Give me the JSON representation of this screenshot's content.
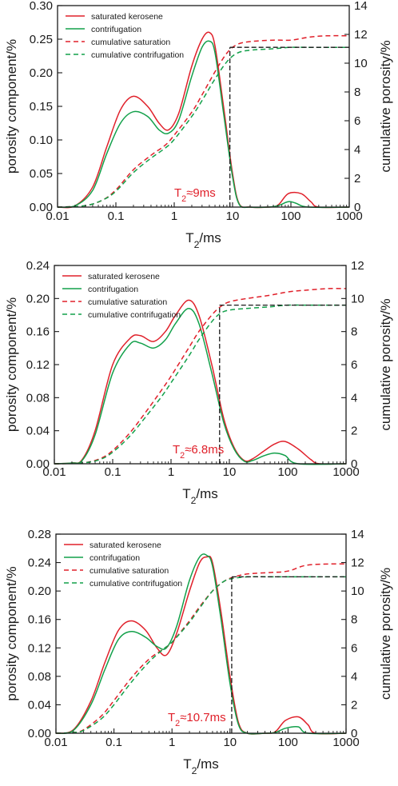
{
  "colors": {
    "saturated": "#e0202a",
    "centrifuged": "#12a04a",
    "threshold": "#1a1a1a",
    "axis": "#1a1a1a"
  },
  "chart_data": [
    {
      "type": "line",
      "xscale": "log",
      "xlim": [
        0.01,
        1000
      ],
      "xlabel": "T2/ms",
      "ylabel": "porosity component/%",
      "y2label": "cumulative porosity/%",
      "ylim": [
        0,
        0.3
      ],
      "y2lim": [
        0,
        14
      ],
      "xticks": [
        "0.01",
        "0.1",
        "1",
        "10",
        "100",
        "1000"
      ],
      "yticks": [
        "0.00",
        "0.05",
        "0.10",
        "0.15",
        "0.20",
        "0.25",
        "0.30"
      ],
      "y2ticks": [
        "0",
        "2",
        "4",
        "6",
        "8",
        "10",
        "12",
        "14"
      ],
      "legend": [
        "saturated kerosene",
        "contrifugation",
        "cumulative saturation",
        "cumulative contrifugation"
      ],
      "legend_position": "top-left",
      "annotation": "T2≈9ms",
      "cutoff_T2": 9,
      "cutoff_cumulative": 11.1,
      "series": [
        {
          "name": "saturated kerosene",
          "axis": "left",
          "style": "solid",
          "color": "saturated",
          "x": [
            0.01,
            0.02,
            0.04,
            0.07,
            0.12,
            0.2,
            0.35,
            0.55,
            0.8,
            1.2,
            2,
            3,
            4,
            5,
            7,
            10,
            13,
            20,
            40,
            60,
            90,
            150,
            220,
            300,
            1000
          ],
          "y": [
            0,
            0.002,
            0.03,
            0.09,
            0.145,
            0.165,
            0.15,
            0.125,
            0.115,
            0.14,
            0.21,
            0.25,
            0.26,
            0.24,
            0.15,
            0.05,
            0.005,
            0,
            0,
            0.003,
            0.02,
            0.02,
            0.008,
            0,
            0
          ]
        },
        {
          "name": "contrifugation",
          "axis": "left",
          "style": "solid",
          "color": "centrifuged",
          "x": [
            0.01,
            0.02,
            0.04,
            0.07,
            0.12,
            0.2,
            0.35,
            0.55,
            0.8,
            1.2,
            2,
            3,
            4,
            5,
            7,
            10,
            13,
            20,
            40,
            60,
            90,
            120,
            200,
            1000
          ],
          "y": [
            0,
            0.002,
            0.025,
            0.08,
            0.125,
            0.142,
            0.135,
            0.115,
            0.11,
            0.13,
            0.195,
            0.238,
            0.247,
            0.23,
            0.14,
            0.045,
            0.004,
            0,
            0,
            0.002,
            0.008,
            0.006,
            0,
            0
          ]
        },
        {
          "name": "cumulative saturation",
          "axis": "right",
          "style": "dashed",
          "color": "saturated",
          "x": [
            0.01,
            0.03,
            0.06,
            0.1,
            0.2,
            0.4,
            0.7,
            1,
            2,
            3,
            5,
            8,
            12,
            20,
            50,
            100,
            200,
            400,
            1000
          ],
          "y": [
            0,
            0.1,
            0.5,
            1.2,
            2.6,
            3.6,
            4.3,
            5.0,
            6.6,
            7.8,
            9.4,
            10.7,
            11.3,
            11.5,
            11.6,
            11.6,
            11.8,
            11.9,
            11.9
          ]
        },
        {
          "name": "cumulative contrifugation",
          "axis": "right",
          "style": "dashed",
          "color": "centrifuged",
          "x": [
            0.01,
            0.03,
            0.06,
            0.1,
            0.2,
            0.4,
            0.7,
            1,
            2,
            3,
            5,
            8,
            12,
            20,
            50,
            100,
            200,
            400,
            1000
          ],
          "y": [
            0,
            0.1,
            0.5,
            1.1,
            2.4,
            3.4,
            4.1,
            4.7,
            6.3,
            7.4,
            8.9,
            10.1,
            10.7,
            10.9,
            11.0,
            11.1,
            11.1,
            11.1,
            11.1
          ]
        }
      ]
    },
    {
      "type": "line",
      "xscale": "log",
      "xlim": [
        0.01,
        1000
      ],
      "xlabel": "T2/ms",
      "ylabel": "porosity component/%",
      "y2label": "cumulative porosity/%",
      "ylim": [
        0,
        0.24
      ],
      "y2lim": [
        0,
        12
      ],
      "xticks": [
        "0.01",
        "0.1",
        "1",
        "10",
        "100",
        "1000"
      ],
      "yticks": [
        "0.00",
        "0.04",
        "0.08",
        "0.12",
        "0.16",
        "0.20",
        "0.24"
      ],
      "y2ticks": [
        "0",
        "2",
        "4",
        "6",
        "8",
        "10",
        "12"
      ],
      "legend": [
        "saturated kerosene",
        "contrifugation",
        "cumulative saturation",
        "cumulative contrifugation"
      ],
      "legend_position": "top-left",
      "annotation": "T2≈6.8ms",
      "cutoff_T2": 6.8,
      "cutoff_cumulative": 9.6,
      "series": [
        {
          "name": "saturated kerosene",
          "axis": "left",
          "style": "solid",
          "color": "saturated",
          "x": [
            0.01,
            0.02,
            0.03,
            0.05,
            0.1,
            0.2,
            0.3,
            0.5,
            0.8,
            1.2,
            2,
            3,
            5,
            8,
            12,
            18,
            25,
            40,
            60,
            90,
            150,
            250,
            350,
            1000
          ],
          "y": [
            0,
            0.001,
            0.005,
            0.04,
            0.12,
            0.152,
            0.155,
            0.148,
            0.16,
            0.18,
            0.198,
            0.18,
            0.12,
            0.055,
            0.02,
            0.004,
            0.006,
            0.016,
            0.024,
            0.027,
            0.018,
            0.005,
            0,
            0
          ]
        },
        {
          "name": "contrifugation",
          "axis": "left",
          "style": "solid",
          "color": "centrifuged",
          "x": [
            0.01,
            0.02,
            0.03,
            0.05,
            0.1,
            0.2,
            0.3,
            0.5,
            0.8,
            1.2,
            2,
            3,
            5,
            8,
            12,
            18,
            25,
            40,
            60,
            90,
            150,
            1000
          ],
          "y": [
            0,
            0.001,
            0.004,
            0.035,
            0.11,
            0.145,
            0.146,
            0.14,
            0.15,
            0.17,
            0.188,
            0.17,
            0.11,
            0.05,
            0.018,
            0.003,
            0.004,
            0.01,
            0.013,
            0.01,
            0,
            0
          ]
        },
        {
          "name": "cumulative saturation",
          "axis": "right",
          "style": "dashed",
          "color": "saturated",
          "x": [
            0.01,
            0.03,
            0.06,
            0.1,
            0.2,
            0.4,
            0.7,
            1,
            2,
            3,
            5,
            7,
            10,
            20,
            50,
            100,
            200,
            500,
            1000
          ],
          "y": [
            0,
            0.05,
            0.3,
            0.8,
            1.9,
            3.3,
            4.5,
            5.3,
            7.0,
            8.0,
            9.0,
            9.5,
            9.8,
            10.0,
            10.2,
            10.4,
            10.5,
            10.6,
            10.6
          ]
        },
        {
          "name": "cumulative contrifugation",
          "axis": "right",
          "style": "dashed",
          "color": "centrifuged",
          "x": [
            0.01,
            0.03,
            0.06,
            0.1,
            0.2,
            0.4,
            0.7,
            1,
            2,
            3,
            5,
            7,
            10,
            20,
            50,
            100,
            200,
            500,
            1000
          ],
          "y": [
            0,
            0.05,
            0.25,
            0.7,
            1.7,
            3.0,
            4.1,
            4.9,
            6.5,
            7.5,
            8.6,
            9.1,
            9.3,
            9.4,
            9.5,
            9.6,
            9.6,
            9.6,
            9.6
          ]
        }
      ]
    },
    {
      "type": "line",
      "xscale": "log",
      "xlim": [
        0.01,
        1000
      ],
      "xlabel": "T2/ms",
      "ylabel": "porosity component/%",
      "y2label": "cumulative porosity/%",
      "ylim": [
        0,
        0.28
      ],
      "y2lim": [
        0,
        14
      ],
      "xticks": [
        "0.01",
        "0.1",
        "1",
        "10",
        "100",
        "1000"
      ],
      "yticks": [
        "0.00",
        "0.04",
        "0.08",
        "0.12",
        "0.16",
        "0.20",
        "0.24",
        "0.28"
      ],
      "y2ticks": [
        "0",
        "2",
        "4",
        "6",
        "8",
        "10",
        "12",
        "14"
      ],
      "legend": [
        "saturated kerosene",
        "contrifugation",
        "cumulative saturation",
        "cumulative contrifugation"
      ],
      "legend_position": "top-left",
      "annotation": "T2≈10.7ms",
      "cutoff_T2": 10.7,
      "cutoff_cumulative": 11.0,
      "series": [
        {
          "name": "saturated kerosene",
          "axis": "left",
          "style": "solid",
          "color": "saturated",
          "x": [
            0.01,
            0.02,
            0.04,
            0.07,
            0.12,
            0.2,
            0.35,
            0.55,
            0.8,
            1.2,
            2,
            3,
            4,
            5,
            7,
            10,
            14,
            20,
            40,
            60,
            90,
            150,
            220,
            300,
            1000
          ],
          "y": [
            0,
            0.005,
            0.045,
            0.1,
            0.145,
            0.158,
            0.145,
            0.12,
            0.11,
            0.14,
            0.2,
            0.24,
            0.248,
            0.24,
            0.17,
            0.08,
            0.015,
            0,
            0,
            0.002,
            0.018,
            0.023,
            0.012,
            0,
            0
          ]
        },
        {
          "name": "contrifugation",
          "axis": "left",
          "style": "solid",
          "color": "centrifuged",
          "x": [
            0.01,
            0.02,
            0.04,
            0.07,
            0.12,
            0.2,
            0.35,
            0.55,
            0.8,
            1.2,
            2,
            3,
            4,
            5,
            7,
            10,
            14,
            20,
            40,
            60,
            90,
            150,
            220,
            1000
          ],
          "y": [
            0,
            0.004,
            0.04,
            0.09,
            0.132,
            0.143,
            0.135,
            0.122,
            0.12,
            0.15,
            0.215,
            0.248,
            0.25,
            0.235,
            0.16,
            0.07,
            0.012,
            0,
            0,
            0.001,
            0.007,
            0.009,
            0,
            0
          ]
        },
        {
          "name": "cumulative saturation",
          "axis": "right",
          "style": "dashed",
          "color": "saturated",
          "x": [
            0.01,
            0.02,
            0.03,
            0.06,
            0.1,
            0.2,
            0.4,
            0.7,
            1,
            2,
            3,
            5,
            8,
            12,
            20,
            50,
            100,
            200,
            500,
            1000
          ],
          "y": [
            0,
            0.05,
            0.25,
            1.2,
            2.3,
            3.9,
            5.2,
            5.9,
            6.4,
            7.9,
            8.9,
            10.0,
            10.7,
            11.0,
            11.2,
            11.3,
            11.4,
            11.8,
            11.9,
            11.9
          ]
        },
        {
          "name": "cumulative contrifugation",
          "axis": "right",
          "style": "dashed",
          "color": "centrifuged",
          "x": [
            0.01,
            0.02,
            0.03,
            0.06,
            0.1,
            0.2,
            0.4,
            0.7,
            1,
            2,
            3,
            5,
            8,
            12,
            20,
            50,
            100,
            200,
            500,
            1000
          ],
          "y": [
            0,
            0.05,
            0.2,
            1.0,
            2.0,
            3.6,
            5.0,
            5.9,
            6.4,
            7.8,
            8.8,
            10.0,
            10.7,
            10.9,
            11.0,
            11.0,
            11.0,
            11.0,
            11.0,
            11.0
          ]
        }
      ]
    }
  ]
}
